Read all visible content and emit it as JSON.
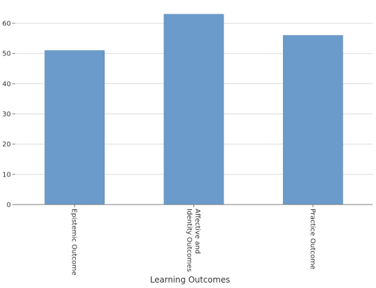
{
  "chart_data": {
    "type": "bar",
    "categories": [
      "Epistemic Outcome",
      "Affective and Identity Outcomes",
      "Practice Outcome"
    ],
    "category_lines": [
      [
        "Epistemic Outcome"
      ],
      [
        "Affective and",
        "Identity Outcomes"
      ],
      [
        "Practice Outcome"
      ]
    ],
    "values": [
      51,
      63,
      56
    ],
    "xlabel": "Learning Outcomes",
    "ylabel": "",
    "ylim": [
      0,
      65
    ],
    "yticks": [
      0,
      10,
      20,
      30,
      40,
      50,
      60
    ],
    "grid": true,
    "bar_color": "#6a9bcb",
    "axis_color": "#777777",
    "grid_color": "#d9d9d9"
  }
}
